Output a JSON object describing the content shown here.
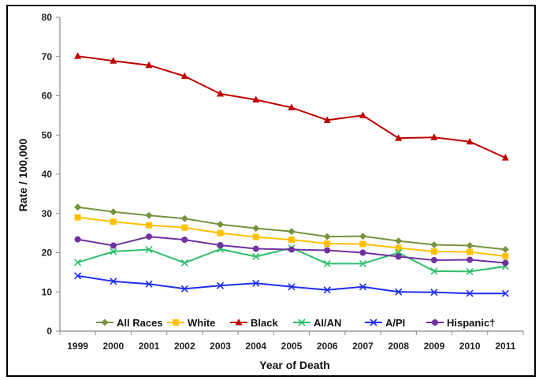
{
  "chart_data": {
    "type": "line",
    "title": "",
    "xlabel": "Year of Death",
    "ylabel": "Rate / 100,000",
    "ylim": [
      0,
      80
    ],
    "yticks": [
      0,
      10,
      20,
      30,
      40,
      50,
      60,
      70,
      80
    ],
    "grid": false,
    "legend_position": "bottom-inside",
    "categories": [
      "1999",
      "2000",
      "2001",
      "2002",
      "2003",
      "2004",
      "2005",
      "2006",
      "2007",
      "2008",
      "2009",
      "2010",
      "2011"
    ],
    "series": [
      {
        "name": "All Races",
        "color": "#77933C",
        "marker": "diamond",
        "values": [
          31.6,
          30.4,
          29.5,
          28.7,
          27.2,
          26.2,
          25.4,
          24.1,
          24.2,
          23.0,
          22.0,
          21.8,
          20.8
        ]
      },
      {
        "name": "White",
        "color": "#FFC000",
        "marker": "square",
        "values": [
          29.0,
          27.9,
          27.0,
          26.4,
          25.0,
          24.0,
          23.3,
          22.3,
          22.2,
          21.2,
          20.3,
          20.2,
          19.1
        ]
      },
      {
        "name": "Black",
        "color": "#C00000",
        "marker": "triangle",
        "values": [
          70.1,
          68.9,
          67.8,
          65.0,
          60.5,
          59.0,
          57.0,
          53.8,
          55.0,
          49.2,
          49.4,
          48.3,
          44.2
        ]
      },
      {
        "name": "AI/AN",
        "color": "#2DBE6C",
        "marker": "x",
        "values": [
          17.5,
          20.3,
          20.8,
          17.4,
          20.9,
          19.0,
          21.2,
          17.2,
          17.2,
          20.0,
          15.3,
          15.2,
          16.5
        ]
      },
      {
        "name": "A/PI",
        "color": "#1F2EF0",
        "marker": "x",
        "values": [
          14.1,
          12.7,
          12.0,
          10.8,
          11.6,
          12.2,
          11.3,
          10.5,
          11.3,
          10.0,
          9.9,
          9.6,
          9.6
        ]
      },
      {
        "name": "Hispanic†",
        "color": "#7030A0",
        "marker": "circle",
        "values": [
          23.4,
          21.8,
          24.1,
          23.3,
          21.9,
          21.0,
          20.8,
          20.6,
          20.0,
          19.0,
          18.1,
          18.2,
          17.4
        ]
      }
    ]
  }
}
